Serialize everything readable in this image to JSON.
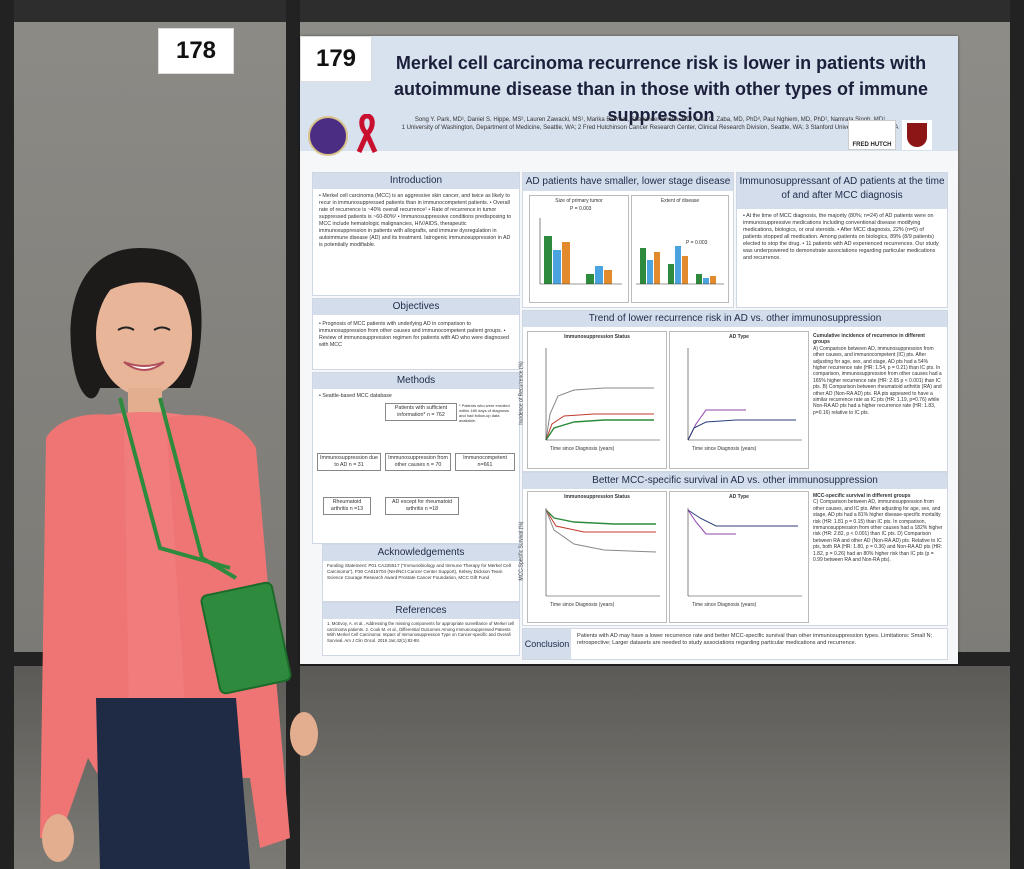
{
  "booth_numbers": {
    "left": "178",
    "right": "179"
  },
  "poster": {
    "title": "Merkel cell carcinoma recurrence risk is lower in patients with autoimmune disease than in those with other types of immune suppression",
    "authors": "Song Y. Park, MD¹, Daniel S. Hippe, MS², Lauren Zawacki, MS¹, Marika Bierma¹, Shailender Bhatia, MD¹, Lisa C. Zaba, MD, PhD³, Paul Nghiem, MD, PhD¹, Namrata Singh, MD¹",
    "affiliations": "1 University of Washington, Department of Medicine, Seattle, WA; 2 Fred Hutchinson Cancer Research Center, Clinical Research Division, Seattle, WA; 3 Stanford University, Stanford, CA",
    "logo_text": "FRED HUTCH",
    "sections": {
      "introduction": {
        "heading": "Introduction",
        "text": "• Merkel cell carcinoma (MCC) is an aggressive skin cancer, and twice as likely to recur in immunosuppressed patients than in immunocompetent patients. • Overall rate of recurrence is ~40% overall recurrence¹ • Rate of recurrence in tumor suppressed patients is ~60-80%² • Immunosuppressive conditions predisposing to MCC include hematologic malignancies, HIV/AIDS, therapeutic immunosuppression in patients with allografts, and immune dysregulation in autoimmune disease (AD) and its treatment. Iatrogenic immunosuppression in AD is potentially modifiable."
      },
      "objectives": {
        "heading": "Objectives",
        "text": "• Prognosis of MCC patients with underlying AD in comparison to immunosuppression from other causes and immunocompetent patient groups. • Review of immunosuppression regimen for patients with AD who were diagnosed with MCC"
      },
      "methods": {
        "heading": "Methods",
        "db": "• Seattle-based MCC database",
        "flow_top": "Patients with sufficient information* n = 762",
        "flow_note": "* Patients who were enrolled within 180 days of diagnosis and had follow-up data available.",
        "flow_a": "Immunosuppression due to AD n = 31",
        "flow_b": "Immunosuppression from other causes n = 70",
        "flow_c": "Immunocompetent n=661",
        "flow_d": "Rheumatoid arthritis n =13",
        "flow_e": "AD except for rheumatoid arthritis n =18"
      },
      "acknowledgements": {
        "heading": "Acknowledgements",
        "text": "Funding Statement: P01 CA225517 (\"Immunobiology and Immune Therapy for Merkel Cell Carcinoma\"), P30 CA015704 (NIH/NCI Cancer Center Support), Kelsey Dickson Team Science Courage Research Award Prostate Cancer Foundation, MCC Gift Fund"
      },
      "references": {
        "heading": "References",
        "text": "1. McEvoy, A. et al., Addressing the missing components for appropriate surveillance of Merkel cell carcinoma patients. 2. Cook M. et al., Differential Outcomes Among Immunosuppressed Patients With Merkel Cell Carcinoma: Impact of Immunosuppression Type on Cancer-specific and Overall Survival. Am J Clin Oncol. 2019 Jan;42(1):82-88."
      },
      "ad_stage": {
        "heading": "AD patients have smaller, lower stage disease",
        "chart1_title": "Size of primary tumor",
        "chart1_p": "P = 0.003",
        "chart2_title": "Extent of disease",
        "chart2_p": "P = 0.003",
        "ylabel": "% of patients"
      },
      "immunosuppressant": {
        "heading": "Immunosuppressant of AD patients at the time of and after MCC diagnosis",
        "text": "• At the time of MCC diagnosis, the majority (80%; n=24) of AD patients were on immunosuppressive medications including conventional disease modifying medications, biologics, or oral steroids. • After MCC diagnosis, 22% (n=5) of patients stopped all medication. Among patients on biologics, 89% (8/9 patients) elected to stop the drug. • 11 patients with AD experienced recurrences. Our study was underpowered to demonstrate associations regarding particular medications and recurrence."
      },
      "recurrence": {
        "heading": "Trend of lower recurrence risk in AD vs. other immunosuppression",
        "panel_a": "Immunosuppression Status",
        "panel_b": "AD Type",
        "xlabel": "Time since Diagnosis (years)",
        "ylabel": "Incidence of Recurrence (%)",
        "side_title": "Cumulative incidence of recurrence in different groups",
        "side_text": "A) Comparison between AD, immunosuppression from other causes, and immunocompetent (IC) pts. After adjusting for age, sex, and stage, AD pts had a 54% higher recurrence rate (HR: 1.54, p = 0.21) than IC pts. In comparison, immunosuppression from other causes had a 165% higher recurrence rate (HR: 2.65 p < 0.001) than IC pts. B) Comparison between rheumatoid arthritis (RA) and other AD (Non-RA AD) pts. RA pts appeared to have a similar recurrence rate as IC pts (HR: 1.19, p=0.76) while Non-RA AD pts had a higher recurrence rate (HR: 1.83, p=0.16) relative to IC pts."
      },
      "survival": {
        "heading": "Better MCC-specific survival in AD vs. other immunosuppression",
        "panel_c": "Immunosuppression Status",
        "panel_d": "AD Type",
        "xlabel": "Time since Diagnosis (years)",
        "ylabel": "MCC-Specific Survival (%)",
        "side_title": "MCC-specific survival in different groups",
        "side_text": "C) Comparison between AD, immunosuppression from other causes, and IC pts. After adjusting for age, sex, and stage, AD pts had a 81% higher disease-specific mortality risk (HR: 1.81 p = 0.15) than IC pts. In comparison, immunosuppression from other causes had a 182% higher risk (HR: 2.82, p < 0.001) than IC pts. D) Comparison between RA and other AD (Non-RA AD) pts. Relative to IC pts, both RA (HR: 1.80, p = 0.36) and Non-RA AD pts (HR: 1.82, p = 0.26) had an 80% higher risk than IC pts (p = 0.99 between RA and Non-RA pts)."
      },
      "conclusion": {
        "heading": "Conclusion",
        "text": "Patients with AD may have a lower recurrence rate and better MCC-specific survival than other immunosuppression types. Limitations: Small N; retrospective; Larger datasets are needed to study associations regarding particular medications and recurrence."
      }
    }
  },
  "colors": {
    "poster_header": "#d8e1ee",
    "section_header": "#d3ddec",
    "cardigan": "#f07c7b",
    "lanyard": "#2e8b3e",
    "pants": "#1f2a44"
  }
}
